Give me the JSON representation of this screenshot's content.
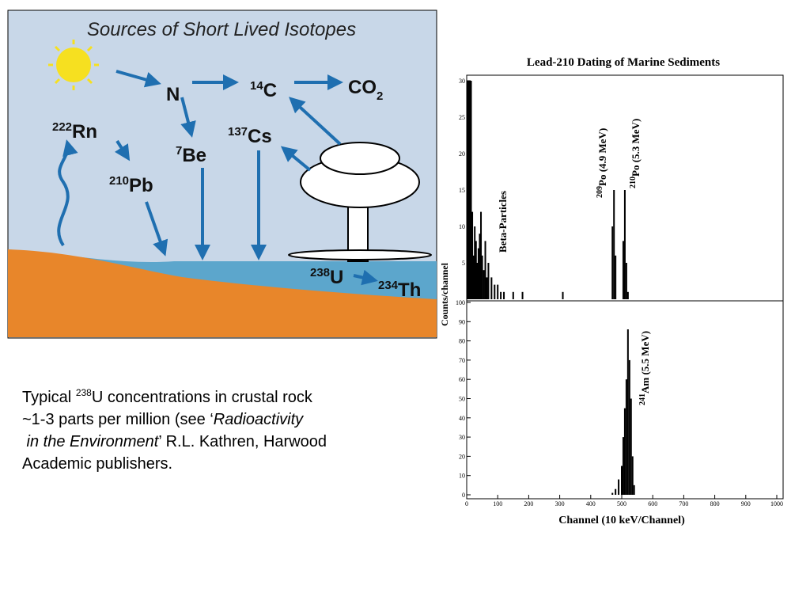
{
  "diagram": {
    "title": "Sources of Short Lived Isotopes",
    "nodes": [
      {
        "mass": "",
        "symbol": "N"
      },
      {
        "mass": "14",
        "symbol": "C"
      },
      {
        "mass": "",
        "symbol": "CO",
        "sub": "2"
      },
      {
        "mass": "222",
        "symbol": "Rn"
      },
      {
        "mass": "7",
        "symbol": "Be"
      },
      {
        "mass": "137",
        "symbol": "Cs"
      },
      {
        "mass": "210",
        "symbol": "Pb"
      },
      {
        "mass": "238",
        "symbol": "U"
      },
      {
        "mass": "234",
        "symbol": "Th"
      }
    ]
  },
  "note": {
    "line1": [
      "Typical ",
      "238",
      "U concentrations in crustal rock"
    ],
    "line2": [
      "~1-3 parts per million (see ‘",
      "Radioactivity"
    ],
    "line3": [
      " in the Environment",
      "’ R.L. Kathren, Harwood"
    ],
    "line4": [
      "Academic publishers."
    ]
  },
  "chart_data": [
    {
      "type": "bar",
      "title": "Lead-210  Dating  of  Marine  Sediments",
      "ylabel": "Counts/channel",
      "x": [
        2,
        6,
        10,
        14,
        18,
        22,
        26,
        30,
        34,
        38,
        42,
        46,
        50,
        55,
        60,
        65,
        70,
        80,
        90,
        100,
        110,
        120,
        150,
        180,
        310,
        470,
        475,
        480,
        505,
        510,
        515,
        520
      ],
      "values": [
        30,
        30,
        30,
        30,
        12,
        6,
        10,
        8,
        5,
        7,
        9,
        12,
        6,
        4,
        8,
        3,
        5,
        3,
        2,
        2,
        1,
        1,
        1,
        1,
        1,
        10,
        15,
        6,
        8,
        15,
        5,
        1
      ],
      "xlim": [
        0,
        1000
      ],
      "ylim": [
        0,
        30
      ],
      "yticks": [
        5,
        10,
        15,
        20,
        25,
        30
      ],
      "color": "#000000",
      "annotations": [
        {
          "text": "Beta-Particles"
        },
        {
          "mass": "209",
          "text": "Po (4.9 MeV)"
        },
        {
          "mass": "210",
          "text": "Po (5.3 MeV)"
        }
      ]
    },
    {
      "type": "bar",
      "xlabel": "Channel (10 keV/Channel)",
      "x": [
        470,
        480,
        490,
        500,
        505,
        510,
        515,
        520,
        525,
        530,
        535,
        540
      ],
      "values": [
        1,
        3,
        8,
        15,
        30,
        45,
        60,
        86,
        70,
        50,
        20,
        5
      ],
      "xlim": [
        0,
        1000
      ],
      "ylim": [
        0,
        100
      ],
      "yticks": [
        0,
        10,
        20,
        30,
        40,
        50,
        60,
        70,
        80,
        90,
        100
      ],
      "xticks": [
        0,
        100,
        200,
        300,
        400,
        500,
        600,
        700,
        800,
        900,
        1000
      ],
      "color": "#000000",
      "annotations": [
        {
          "mass": "241",
          "text": "Am (5.5 MeV)"
        }
      ]
    }
  ]
}
